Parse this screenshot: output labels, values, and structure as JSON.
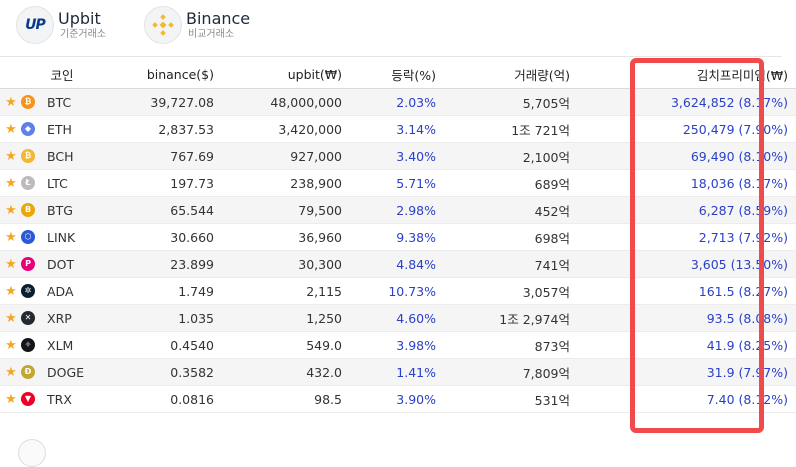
{
  "exchanges": {
    "upbit": {
      "logo_text": "UP",
      "name": "Upbit",
      "sub": "기준거래소"
    },
    "binance": {
      "name": "Binance",
      "sub": "비교거래소"
    }
  },
  "table": {
    "headers": {
      "coin": "코인",
      "binance": "binance($)",
      "upbit": "upbit(₩)",
      "change": "등락(%)",
      "volume": "거래량(억)",
      "kimchi": "김치프리미엄(₩)"
    },
    "rows": [
      {
        "symbol": "BTC",
        "icon": "bitcoin-icon",
        "icon_glyph": "₿",
        "icon_color": "#f7931a",
        "binance": "39,727.08",
        "upbit": "48,000,000",
        "change": "2.03%",
        "volume": "5,705억",
        "kimchi": "3,624,852 (8.17%)"
      },
      {
        "symbol": "ETH",
        "icon": "ethereum-icon",
        "icon_glyph": "◆",
        "icon_color": "#627eea",
        "binance": "2,837.53",
        "upbit": "3,420,000",
        "change": "3.14%",
        "volume": "1조 721억",
        "kimchi": "250,479 (7.90%)"
      },
      {
        "symbol": "BCH",
        "icon": "bitcoin-cash-icon",
        "icon_glyph": "₿",
        "icon_color": "#f2b830",
        "binance": "767.69",
        "upbit": "927,000",
        "change": "3.40%",
        "volume": "2,100억",
        "kimchi": "69,490 (8.10%)"
      },
      {
        "symbol": "LTC",
        "icon": "litecoin-icon",
        "icon_glyph": "Ł",
        "icon_color": "#bfbbbb",
        "binance": "197.73",
        "upbit": "238,900",
        "change": "5.71%",
        "volume": "689억",
        "kimchi": "18,036 (8.17%)"
      },
      {
        "symbol": "BTG",
        "icon": "bitcoin-gold-icon",
        "icon_glyph": "B",
        "icon_color": "#eba809",
        "binance": "65.544",
        "upbit": "79,500",
        "change": "2.98%",
        "volume": "452억",
        "kimchi": "6,287 (8.59%)"
      },
      {
        "symbol": "LINK",
        "icon": "chainlink-icon",
        "icon_glyph": "⬡",
        "icon_color": "#2a5ada",
        "binance": "30.660",
        "upbit": "36,960",
        "change": "9.38%",
        "volume": "698억",
        "kimchi": "2,713 (7.92%)"
      },
      {
        "symbol": "DOT",
        "icon": "polkadot-icon",
        "icon_glyph": "P",
        "icon_color": "#e6007a",
        "binance": "23.899",
        "upbit": "30,300",
        "change": "4.84%",
        "volume": "741억",
        "kimchi": "3,605 (13.50%)"
      },
      {
        "symbol": "ADA",
        "icon": "cardano-icon",
        "icon_glyph": "✲",
        "icon_color": "#0d1e30",
        "binance": "1.749",
        "upbit": "2,115",
        "change": "10.73%",
        "volume": "3,057억",
        "kimchi": "161.5 (8.27%)"
      },
      {
        "symbol": "XRP",
        "icon": "ripple-icon",
        "icon_glyph": "✕",
        "icon_color": "#23292f",
        "binance": "1.035",
        "upbit": "1,250",
        "change": "4.60%",
        "volume": "1조 2,974억",
        "kimchi": "93.5 (8.08%)"
      },
      {
        "symbol": "XLM",
        "icon": "stellar-icon",
        "icon_glyph": "✧",
        "icon_color": "#14151a",
        "binance": "0.4540",
        "upbit": "549.0",
        "change": "3.98%",
        "volume": "873억",
        "kimchi": "41.9 (8.25%)"
      },
      {
        "symbol": "DOGE",
        "icon": "dogecoin-icon",
        "icon_glyph": "Ð",
        "icon_color": "#c2a633",
        "binance": "0.3582",
        "upbit": "432.0",
        "change": "1.41%",
        "volume": "7,809억",
        "kimchi": "31.9 (7.97%)"
      },
      {
        "symbol": "TRX",
        "icon": "tron-icon",
        "icon_glyph": "▼",
        "icon_color": "#ef0027",
        "binance": "0.0816",
        "upbit": "98.5",
        "change": "3.90%",
        "volume": "531억",
        "kimchi": "7.40 (8.12%)"
      }
    ]
  },
  "colors": {
    "highlight": "#f04a4a",
    "positive": "#2a40c8",
    "star": "#f5a623"
  }
}
